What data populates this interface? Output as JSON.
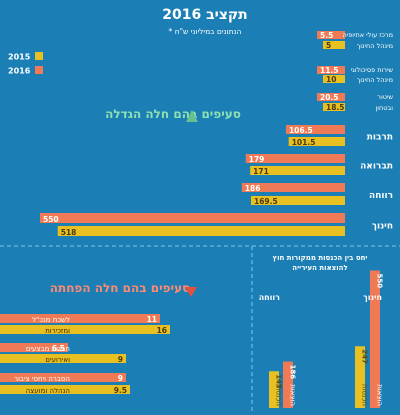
{
  "colors": {
    "background": "#1b7fb5",
    "s2015": "#e8c021",
    "s2016": "#ef7a55",
    "increase": "#64c08c",
    "decrease": "#e0503a",
    "divider": "#7fc4e6",
    "text": "#ffffff",
    "rotated_text": "#5a4a16"
  },
  "header": {
    "title": "תקציב 2016",
    "subtitle": "* הנתונים במיליוני ש\"ח"
  },
  "legend": [
    {
      "label": "2015",
      "color": "#e8c021"
    },
    {
      "label": "2016",
      "color": "#ef7a55"
    }
  ],
  "sections": {
    "increase_title": "סעיפים בהם חלה הגדלה",
    "decrease_title": "סעיפים בהם חלה הפחתה",
    "ratio_title_line1": "יחס בין הכנסות ממקורות חוץ",
    "ratio_title_line2": "להוצאות העירייה"
  },
  "chart_data": [
    {
      "type": "bar",
      "orientation": "horizontal",
      "group": "increase",
      "title": "סעיפים בהם חלה הגדלה",
      "series_names": [
        "2015",
        "2016"
      ],
      "categories": [
        {
          "label": [
            "מרכז עולי אתיופיה",
            "מינהל החינוך"
          ],
          "v2015": 5,
          "v2016": 5.5
        },
        {
          "label": [
            "שירות פסיכולוגי",
            "מינהל החינוך"
          ],
          "v2015": 10,
          "v2016": 11.5
        },
        {
          "label": [
            "שיטור",
            "ובטחון"
          ],
          "v2015": 18.5,
          "v2016": 20.5
        },
        {
          "label": [
            "תרבות"
          ],
          "v2015": 101.5,
          "v2016": 106.5
        },
        {
          "label": [
            "תברואה"
          ],
          "v2015": 171,
          "v2016": 179
        },
        {
          "label": [
            "רווחה"
          ],
          "v2015": 169.5,
          "v2016": 186
        },
        {
          "label": [
            "חינוך"
          ],
          "v2015": 518,
          "v2016": 550
        }
      ]
    },
    {
      "type": "bar",
      "orientation": "horizontal",
      "group": "decrease",
      "title": "סעיפים בהם חלה הפחתה",
      "series_names": [
        "2015",
        "2016"
      ],
      "categories": [
        {
          "label": [
            "לשכת מנכ\"ל",
            "ומזכירות"
          ],
          "v2015": 16,
          "v2016": 11
        },
        {
          "label": [
            "חגיגות מבצעים",
            "ואירועים"
          ],
          "v2015": 9,
          "v2016": 6.5
        },
        {
          "label": [
            "הסברה ויחסי ציבור",
            "הנהלה ומועצה"
          ],
          "v2015": 9.5,
          "v2016": 9
        }
      ]
    },
    {
      "type": "bar",
      "orientation": "vertical",
      "group": "ratio",
      "title": "יחס בין הכנסות ממקורות חוץ להוצאות העירייה",
      "categories": [
        {
          "label": "חינוך",
          "expense": 550,
          "external": 247,
          "expense_label": "הוצאות",
          "external_label": "הכנסות"
        },
        {
          "label": "רווחה",
          "expense": 186,
          "external": 147,
          "expense_label": "הוצאות",
          "external_label": "הכנסות"
        }
      ]
    }
  ]
}
